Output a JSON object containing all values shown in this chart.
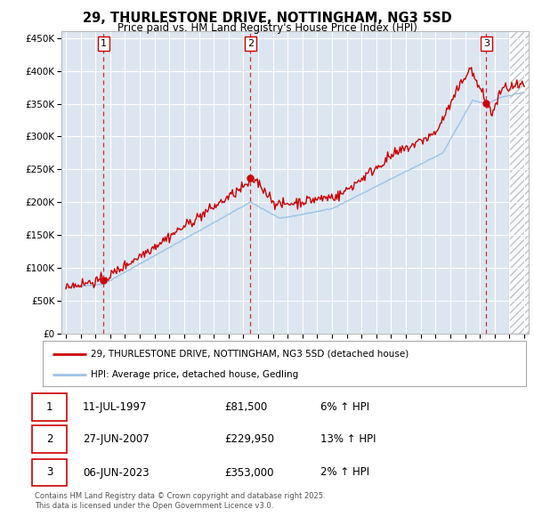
{
  "title1": "29, THURLESTONE DRIVE, NOTTINGHAM, NG3 5SD",
  "title2": "Price paid vs. HM Land Registry's House Price Index (HPI)",
  "plot_bg_color": "#dce6f1",
  "red_color": "#cc0000",
  "blue_color": "#9dc3e6",
  "ylim": [
    0,
    460000
  ],
  "yticks": [
    0,
    50000,
    100000,
    150000,
    200000,
    250000,
    300000,
    350000,
    400000,
    450000
  ],
  "year_start": 1995,
  "year_end": 2026,
  "transaction1": {
    "year": 1997.55,
    "price": 81500,
    "label": "1"
  },
  "transaction2": {
    "year": 2007.49,
    "price": 229950,
    "label": "2"
  },
  "transaction3": {
    "year": 2023.43,
    "price": 353000,
    "label": "3"
  },
  "legend_line1": "29, THURLESTONE DRIVE, NOTTINGHAM, NG3 5SD (detached house)",
  "legend_line2": "HPI: Average price, detached house, Gedling",
  "footnote": "Contains HM Land Registry data © Crown copyright and database right 2025.\nThis data is licensed under the Open Government Licence v3.0.",
  "table_rows": [
    {
      "num": "1",
      "date": "11-JUL-1997",
      "price": "£81,500",
      "hpi": "6% ↑ HPI"
    },
    {
      "num": "2",
      "date": "27-JUN-2007",
      "price": "£229,950",
      "hpi": "13% ↑ HPI"
    },
    {
      "num": "3",
      "date": "06-JUN-2023",
      "price": "£353,000",
      "hpi": "2% ↑ HPI"
    }
  ]
}
